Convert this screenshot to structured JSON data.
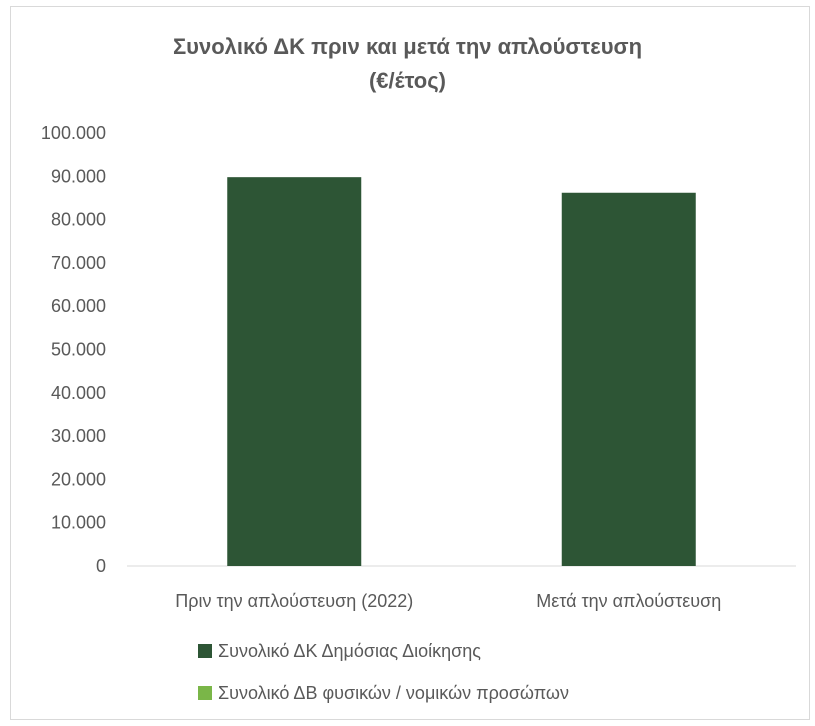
{
  "chart_data": {
    "type": "bar",
    "title": "Συνολικό ΔΚ πριν και μετά την απλούστευση",
    "subtitle": "(€/έτος)",
    "categories": [
      "Πριν την απλούστευση (2022)",
      "Μετά την απλούστευση"
    ],
    "series": [
      {
        "name": "Συνολικό ΔΚ Δημόσιας Διοίκησης",
        "values": [
          89800,
          86200
        ],
        "color": "#2d5535"
      },
      {
        "name": "Συνολικό ΔΒ φυσικών / νομικών προσώπων",
        "values": [
          0,
          0
        ],
        "color": "#7ab648"
      }
    ],
    "ylim": [
      0,
      100000
    ],
    "yticks": [
      "0",
      "10.000",
      "20.000",
      "30.000",
      "40.000",
      "50.000",
      "60.000",
      "70.000",
      "80.000",
      "90.000",
      "100.000"
    ],
    "grid": false,
    "legend_position": "bottom"
  }
}
